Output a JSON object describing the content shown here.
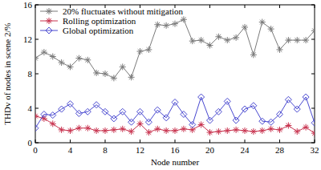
{
  "chart_data": {
    "type": "line",
    "x_label": "Node number",
    "y_label": "THDv of nodes in scene 2/%",
    "x": [
      0,
      1,
      2,
      3,
      4,
      5,
      6,
      7,
      8,
      9,
      10,
      11,
      12,
      13,
      14,
      15,
      16,
      17,
      18,
      19,
      20,
      21,
      22,
      23,
      24,
      25,
      26,
      27,
      28,
      29,
      30,
      31,
      32
    ],
    "xlim": [
      0,
      32
    ],
    "xticks": [
      0,
      4,
      8,
      12,
      16,
      20,
      24,
      28,
      32
    ],
    "ylim": [
      0,
      16
    ],
    "yticks": [
      0,
      4,
      8,
      12,
      16
    ],
    "legend": "upper-left",
    "grid": false,
    "series": [
      {
        "name": "20% fluctuates without mitigation",
        "color": "#7a7a7a",
        "marker": "star",
        "line_style": "solid",
        "values": [
          9.8,
          10.5,
          10,
          9.3,
          8.8,
          9.8,
          9.6,
          8.1,
          8,
          7.5,
          8.8,
          7.6,
          10.6,
          10.8,
          13.7,
          13.6,
          13.8,
          14.3,
          11.8,
          11.9,
          11.3,
          12.3,
          11.9,
          12.2,
          13.4,
          10.2,
          14,
          13.2,
          10.8,
          11.9,
          11.9,
          11.9,
          13
        ]
      },
      {
        "name": "Rolling optimization",
        "color": "#c8324e",
        "marker": "star",
        "line_style": "solid",
        "values": [
          3.1,
          2.8,
          2.2,
          1.5,
          1.4,
          1.7,
          1.7,
          1.4,
          1.4,
          1.5,
          1.6,
          1.3,
          2.2,
          1.2,
          1.6,
          1.4,
          1.4,
          1.6,
          1.5,
          2.1,
          1.2,
          1.3,
          1.4,
          1.5,
          1.4,
          1.3,
          1.4,
          1.6,
          1.5,
          2,
          1.3,
          1.8,
          1.1
        ]
      },
      {
        "name": "Global optimization",
        "color": "#4848d0",
        "marker": "diamond",
        "line_style": "solid",
        "values": [
          1.7,
          3.3,
          3.2,
          3.9,
          4.5,
          3.4,
          3.6,
          4.4,
          3.6,
          2.8,
          3.6,
          2.4,
          3.6,
          2.4,
          3.8,
          2.9,
          4.7,
          3.3,
          2.1,
          5.3,
          2.6,
          3.6,
          4.8,
          2.6,
          3.9,
          4.3,
          2.5,
          2.4,
          3.3,
          5,
          3.9,
          5.3,
          2.3
        ]
      }
    ]
  }
}
